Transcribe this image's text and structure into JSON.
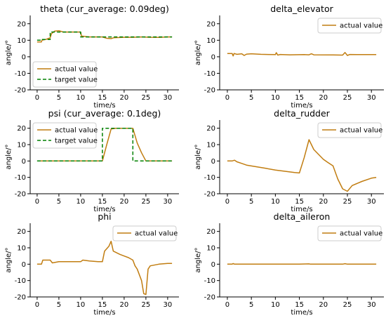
{
  "chart_data": [
    {
      "type": "line",
      "title": "theta (cur_average: 0.09deg)",
      "xlabel": "time/s",
      "ylabel": "angle/°",
      "xlim": [
        -1.6,
        32.6
      ],
      "ylim": [
        -20,
        25
      ],
      "xticks": [
        0,
        5,
        10,
        15,
        20,
        25,
        30
      ],
      "yticks": [
        -20,
        -10,
        0,
        10,
        20
      ],
      "legend": "lower-left",
      "series": [
        {
          "name": "actual value",
          "color": "#c17d11",
          "style": "solid",
          "points": [
            [
              0,
              9
            ],
            [
              1,
              9
            ],
            [
              1.1,
              10
            ],
            [
              2,
              10.5
            ],
            [
              3,
              11.5
            ],
            [
              3.3,
              14
            ],
            [
              4,
              15.5
            ],
            [
              5,
              15.8
            ],
            [
              6,
              15
            ],
            [
              8,
              15
            ],
            [
              10,
              15
            ],
            [
              10.2,
              12.5
            ],
            [
              12,
              12
            ],
            [
              15,
              12
            ],
            [
              16,
              11.2
            ],
            [
              17,
              11
            ],
            [
              17.6,
              11.5
            ],
            [
              20,
              11.8
            ],
            [
              22,
              11.8
            ],
            [
              24,
              12
            ],
            [
              26,
              11.8
            ],
            [
              28,
              11.7
            ],
            [
              30,
              12
            ],
            [
              31,
              12
            ]
          ]
        },
        {
          "name": "target value",
          "color": "#008000",
          "style": "dashed",
          "points": [
            [
              0,
              10
            ],
            [
              1,
              10
            ],
            [
              1,
              10.5
            ],
            [
              3,
              10.5
            ],
            [
              3,
              15
            ],
            [
              10,
              15
            ],
            [
              10,
              12
            ],
            [
              31,
              12
            ]
          ]
        }
      ]
    },
    {
      "type": "line",
      "title": "delta_elevator",
      "xlabel": "time/s",
      "ylabel": "angle/°",
      "xlim": [
        -1.6,
        32.6
      ],
      "ylim": [
        -20,
        25
      ],
      "xticks": [
        0,
        5,
        10,
        15,
        20,
        25,
        30
      ],
      "yticks": [
        -20,
        -10,
        0,
        10,
        20
      ],
      "legend": "upper-right",
      "series": [
        {
          "name": "actual value",
          "color": "#c17d11",
          "style": "solid",
          "points": [
            [
              0,
              2
            ],
            [
              1,
              2
            ],
            [
              1.2,
              0.5
            ],
            [
              1.4,
              2
            ],
            [
              2,
              1.5
            ],
            [
              3,
              1.8
            ],
            [
              3.5,
              0.8
            ],
            [
              4,
              1.6
            ],
            [
              5,
              1.8
            ],
            [
              7,
              1.5
            ],
            [
              10,
              1.3
            ],
            [
              10.2,
              2.5
            ],
            [
              10.5,
              1
            ],
            [
              11,
              1.4
            ],
            [
              13,
              1.2
            ],
            [
              16,
              1.3
            ],
            [
              17,
              1.2
            ],
            [
              17.5,
              1.8
            ],
            [
              18,
              1.2
            ],
            [
              22,
              1.1
            ],
            [
              24,
              1
            ],
            [
              24.5,
              2.6
            ],
            [
              25,
              0.8
            ],
            [
              25.5,
              1.4
            ],
            [
              28,
              1.3
            ],
            [
              31,
              1.3
            ]
          ]
        }
      ]
    },
    {
      "type": "line",
      "title": "psi (cur_average: 0.1deg)",
      "xlabel": "time/s",
      "ylabel": "angle/°",
      "xlim": [
        -1.6,
        32.6
      ],
      "ylim": [
        -20,
        25
      ],
      "xticks": [
        0,
        5,
        10,
        15,
        20,
        25,
        30
      ],
      "yticks": [
        -20,
        -10,
        0,
        10,
        20
      ],
      "legend": "upper-left",
      "series": [
        {
          "name": "actual value",
          "color": "#c17d11",
          "style": "solid",
          "points": [
            [
              0,
              0
            ],
            [
              15,
              0
            ],
            [
              16,
              10
            ],
            [
              17,
              19.5
            ],
            [
              18,
              20
            ],
            [
              22,
              20
            ],
            [
              23,
              11
            ],
            [
              24,
              5
            ],
            [
              25,
              0
            ],
            [
              31,
              0
            ]
          ]
        },
        {
          "name": "target value",
          "color": "#008000",
          "style": "dashed",
          "points": [
            [
              0,
              0
            ],
            [
              15,
              0
            ],
            [
              15,
              20
            ],
            [
              22,
              20
            ],
            [
              22,
              0
            ],
            [
              31,
              0
            ]
          ]
        }
      ]
    },
    {
      "type": "line",
      "title": "delta_rudder",
      "xlabel": "time/s",
      "ylabel": "angle/°",
      "xlim": [
        -1.6,
        32.6
      ],
      "ylim": [
        -20,
        25
      ],
      "xticks": [
        0,
        5,
        10,
        15,
        20,
        25,
        30
      ],
      "yticks": [
        -20,
        -10,
        0,
        10,
        20
      ],
      "legend": "upper-right",
      "series": [
        {
          "name": "actual value",
          "color": "#c17d11",
          "style": "solid",
          "points": [
            [
              0,
              0
            ],
            [
              1,
              0
            ],
            [
              1.5,
              0.5
            ],
            [
              2,
              -0.5
            ],
            [
              3,
              -1.5
            ],
            [
              4,
              -2.5
            ],
            [
              6,
              -3.5
            ],
            [
              8,
              -4.5
            ],
            [
              10,
              -5.5
            ],
            [
              12,
              -6.3
            ],
            [
              14,
              -7
            ],
            [
              15,
              -7.3
            ],
            [
              16,
              2
            ],
            [
              17,
              13
            ],
            [
              18,
              7
            ],
            [
              20,
              1
            ],
            [
              21,
              -1
            ],
            [
              22,
              -3
            ],
            [
              23,
              -11
            ],
            [
              24,
              -17
            ],
            [
              25,
              -18.5
            ],
            [
              26,
              -15
            ],
            [
              28,
              -12.5
            ],
            [
              30,
              -10.5
            ],
            [
              31,
              -10
            ]
          ]
        }
      ]
    },
    {
      "type": "line",
      "title": "phi",
      "xlabel": "time/s",
      "ylabel": "angle/°",
      "xlim": [
        -1.6,
        32.6
      ],
      "ylim": [
        -20,
        25
      ],
      "xticks": [
        0,
        5,
        10,
        15,
        20,
        25,
        30
      ],
      "yticks": [
        -20,
        -10,
        0,
        10,
        20
      ],
      "legend": "upper-right",
      "series": [
        {
          "name": "actual value",
          "color": "#c17d11",
          "style": "solid",
          "points": [
            [
              0,
              0
            ],
            [
              1,
              0
            ],
            [
              1.3,
              2.5
            ],
            [
              3,
              2.5
            ],
            [
              3.5,
              0.8
            ],
            [
              5,
              1.5
            ],
            [
              10,
              1.5
            ],
            [
              10.5,
              2.5
            ],
            [
              12,
              2
            ],
            [
              14,
              1.5
            ],
            [
              15,
              1.5
            ],
            [
              15.5,
              8
            ],
            [
              16.5,
              11
            ],
            [
              17,
              14
            ],
            [
              17.5,
              8
            ],
            [
              19,
              6
            ],
            [
              20,
              5
            ],
            [
              21,
              4
            ],
            [
              22,
              2.5
            ],
            [
              22.5,
              -1
            ],
            [
              23,
              -3
            ],
            [
              24,
              -10
            ],
            [
              24.5,
              -18
            ],
            [
              25,
              -18.5
            ],
            [
              25.5,
              -3
            ],
            [
              26,
              -1
            ],
            [
              28,
              0
            ],
            [
              30,
              0.5
            ],
            [
              31,
              0.5
            ]
          ]
        }
      ]
    },
    {
      "type": "line",
      "title": "delta_aileron",
      "xlabel": "time/s",
      "ylabel": "angle/°",
      "xlim": [
        -1.6,
        32.6
      ],
      "ylim": [
        -20,
        25
      ],
      "xticks": [
        0,
        5,
        10,
        15,
        20,
        25,
        30
      ],
      "yticks": [
        -20,
        -10,
        0,
        10,
        20
      ],
      "legend": "upper-right",
      "series": [
        {
          "name": "actual value",
          "color": "#c17d11",
          "style": "solid",
          "points": [
            [
              0,
              0
            ],
            [
              1,
              0
            ],
            [
              1.2,
              0.4
            ],
            [
              1.5,
              0
            ],
            [
              5,
              0
            ],
            [
              10,
              0
            ],
            [
              15,
              0
            ],
            [
              17,
              0.2
            ],
            [
              17.3,
              0
            ],
            [
              24,
              0
            ],
            [
              24.5,
              0.3
            ],
            [
              25,
              0
            ],
            [
              31,
              0
            ]
          ]
        }
      ]
    }
  ]
}
